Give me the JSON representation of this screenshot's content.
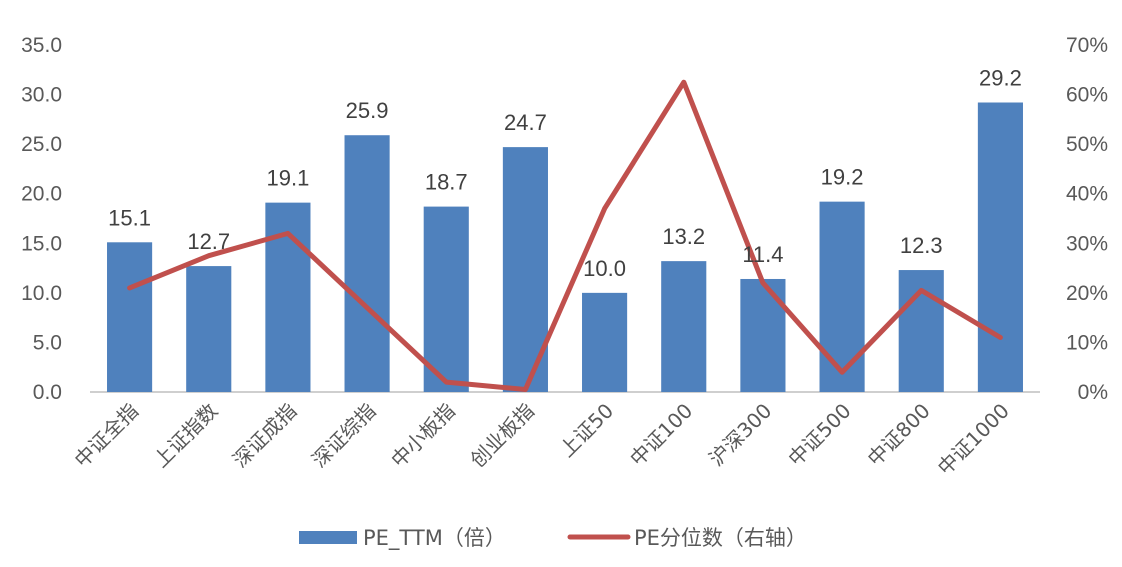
{
  "chart_data": {
    "type": "bar",
    "categories": [
      "中证全指",
      "上证指数",
      "深证成指",
      "深证综指",
      "中小板指",
      "创业板指",
      "上证50",
      "中证100",
      "沪深300",
      "中证500",
      "中证800",
      "中证1000"
    ],
    "series": [
      {
        "name": "PE_TTM（倍）",
        "type": "bar",
        "axis": "left",
        "color": "#4f81bd",
        "values": [
          15.1,
          12.7,
          19.1,
          25.9,
          18.7,
          24.7,
          10.0,
          13.2,
          11.4,
          19.2,
          12.3,
          29.2
        ],
        "labels": [
          "15.1",
          "12.7",
          "19.1",
          "25.9",
          "18.7",
          "24.7",
          "10.0",
          "13.2",
          "11.4",
          "19.2",
          "12.3",
          "29.2"
        ]
      },
      {
        "name": "PE分位数（右轴）",
        "type": "line",
        "axis": "right",
        "color": "#c0504d",
        "values": [
          21,
          27.5,
          32,
          17,
          2,
          0.5,
          37,
          62.5,
          22,
          4,
          20.5,
          11
        ]
      }
    ],
    "left_axis": {
      "min": 0,
      "max": 35,
      "step": 5,
      "tick_labels": [
        "0.0",
        "5.0",
        "10.0",
        "15.0",
        "20.0",
        "25.0",
        "30.0",
        "35.0"
      ]
    },
    "right_axis": {
      "min": 0,
      "max": 70,
      "step": 10,
      "tick_labels": [
        "0%",
        "10%",
        "20%",
        "30%",
        "40%",
        "50%",
        "60%",
        "70%"
      ]
    },
    "grid": false,
    "legend_position": "bottom"
  }
}
